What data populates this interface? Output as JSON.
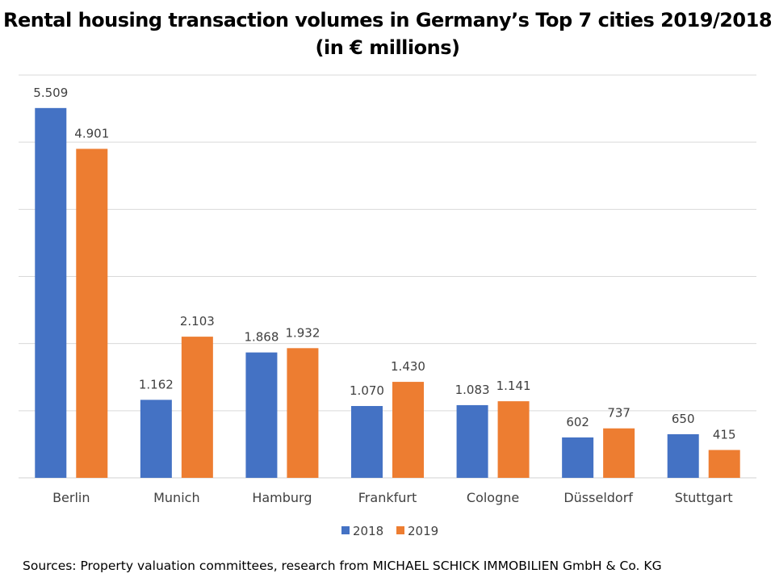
{
  "title_line1": "Rental housing transaction volumes in Germany’s Top 7 cities 2019/2018",
  "title_line2": "(in € millions)",
  "source": "Sources: Property valuation committees, research from MICHAEL SCHICK IMMOBILIEN GmbH & Co. KG",
  "colors": {
    "2018": "#4472C4",
    "2019": "#ED7D31",
    "grid": "#D9D9D9"
  },
  "chart_data": {
    "type": "bar",
    "title": "Rental housing transaction volumes in Germany’s Top 7 cities 2019/2018 (in € millions)",
    "categories": [
      "Berlin",
      "Munich",
      "Hamburg",
      "Frankfurt",
      "Cologne",
      "Düsseldorf",
      "Stuttgart"
    ],
    "series": [
      {
        "name": "2018",
        "values": [
          5509,
          1162,
          1868,
          1070,
          1083,
          602,
          650
        ],
        "labels": [
          "5.509",
          "1.162",
          "1.868",
          "1.070",
          "1.083",
          "602",
          "650"
        ]
      },
      {
        "name": "2019",
        "values": [
          4901,
          2103,
          1932,
          1430,
          1141,
          737,
          415
        ],
        "labels": [
          "4.901",
          "2.103",
          "1.932",
          "1.430",
          "1.141",
          "737",
          "415"
        ]
      }
    ],
    "ylim": [
      0,
      6000
    ],
    "grid": true,
    "legend": "bottom"
  }
}
